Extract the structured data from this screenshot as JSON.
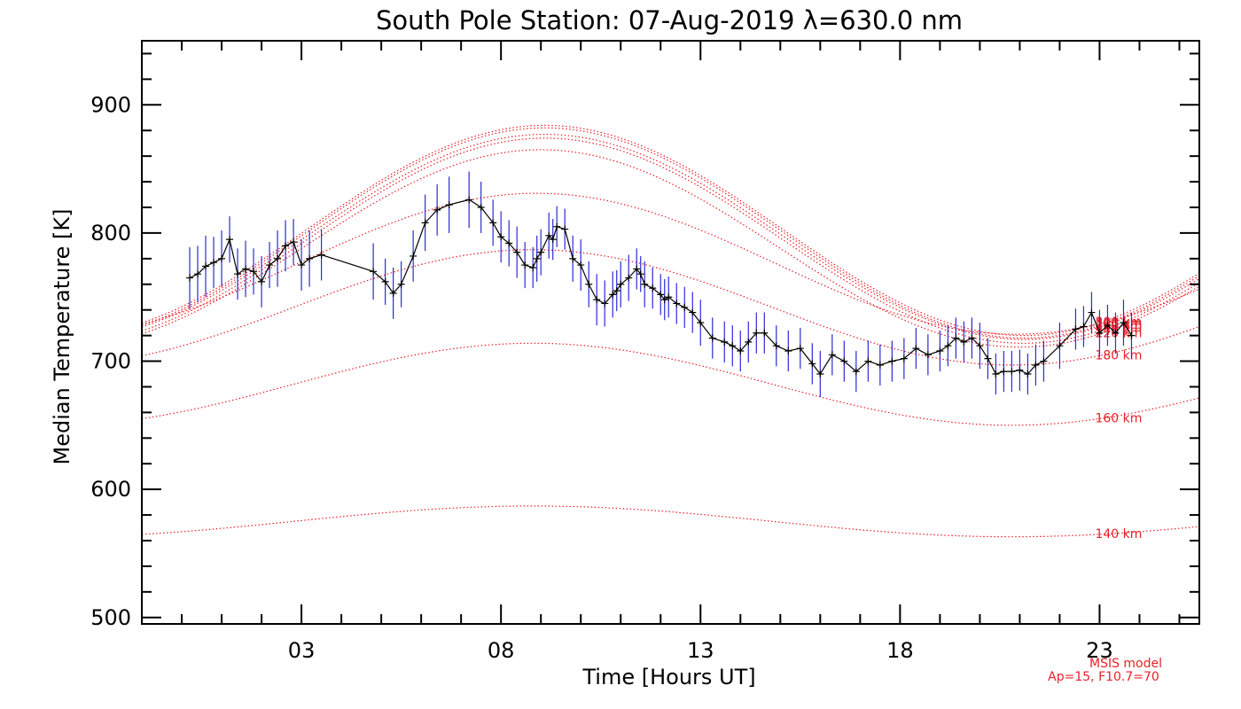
{
  "chart_data": {
    "type": "line",
    "title": "South Pole Station: 07-Aug-2019 λ=630.0 nm",
    "xlabel": "Time [Hours UT]",
    "ylabel": "Median Temperature [K]",
    "xlim": [
      -1,
      25.5
    ],
    "ylim": [
      495,
      950
    ],
    "x_ticks": [
      3,
      8,
      13,
      18,
      23
    ],
    "x_tick_labels": [
      "03",
      "08",
      "13",
      "18",
      "23"
    ],
    "y_ticks": [
      500,
      600,
      700,
      800,
      900
    ],
    "y_tick_labels": [
      "500",
      "600",
      "700",
      "800",
      "900"
    ],
    "observations": {
      "name": "Median temperature",
      "color_line": "#000000",
      "color_error": "#2b2bd6",
      "x": [
        0.2,
        0.4,
        0.6,
        0.8,
        1.0,
        1.2,
        1.4,
        1.6,
        1.8,
        2.0,
        2.2,
        2.4,
        2.6,
        2.8,
        3.0,
        3.2,
        3.5,
        4.8,
        5.1,
        5.3,
        5.5,
        5.8,
        6.1,
        6.4,
        6.7,
        7.2,
        7.5,
        7.8,
        8.0,
        8.2,
        8.4,
        8.6,
        8.8,
        8.9,
        9.0,
        9.2,
        9.3,
        9.4,
        9.6,
        9.8,
        10.0,
        10.2,
        10.4,
        10.6,
        10.8,
        10.9,
        11.0,
        11.2,
        11.4,
        11.5,
        11.6,
        11.8,
        12.0,
        12.1,
        12.2,
        12.4,
        12.6,
        12.8,
        13.0,
        13.3,
        13.6,
        13.8,
        14.0,
        14.2,
        14.4,
        14.6,
        14.9,
        15.2,
        15.5,
        15.8,
        16.0,
        16.3,
        16.6,
        16.9,
        17.2,
        17.5,
        17.8,
        18.1,
        18.4,
        18.7,
        19.0,
        19.2,
        19.4,
        19.6,
        19.8,
        20.0,
        20.2,
        20.4,
        20.6,
        20.8,
        21.0,
        21.2,
        21.4,
        21.6,
        22.0,
        22.4,
        22.6,
        22.8,
        23.0,
        23.2,
        23.4,
        23.6,
        23.8
      ],
      "y": [
        765,
        768,
        774,
        777,
        780,
        795,
        768,
        772,
        770,
        762,
        775,
        780,
        790,
        793,
        775,
        780,
        783,
        770,
        762,
        753,
        760,
        782,
        808,
        818,
        822,
        826,
        820,
        808,
        797,
        792,
        785,
        775,
        773,
        780,
        785,
        798,
        795,
        805,
        803,
        780,
        775,
        760,
        748,
        745,
        752,
        755,
        760,
        765,
        772,
        768,
        760,
        757,
        752,
        748,
        750,
        745,
        742,
        738,
        730,
        718,
        715,
        712,
        708,
        715,
        722,
        722,
        712,
        708,
        710,
        698,
        690,
        705,
        700,
        692,
        700,
        697,
        700,
        702,
        710,
        705,
        708,
        712,
        718,
        715,
        718,
        712,
        702,
        690,
        692,
        692,
        693,
        690,
        697,
        700,
        712,
        725,
        727,
        738,
        722,
        728,
        722,
        730,
        720
      ],
      "err": [
        24,
        22,
        24,
        20,
        22,
        18,
        20,
        22,
        18,
        20,
        18,
        22,
        20,
        18,
        20,
        22,
        20,
        22,
        18,
        20,
        18,
        20,
        22,
        20,
        22,
        22,
        20,
        18,
        20,
        18,
        20,
        18,
        16,
        18,
        18,
        18,
        16,
        16,
        16,
        18,
        20,
        18,
        20,
        18,
        18,
        16,
        18,
        18,
        16,
        14,
        18,
        16,
        16,
        16,
        16,
        16,
        16,
        16,
        18,
        16,
        16,
        16,
        16,
        16,
        16,
        16,
        16,
        16,
        16,
        16,
        18,
        16,
        16,
        16,
        16,
        16,
        16,
        16,
        16,
        16,
        16,
        16,
        16,
        16,
        16,
        18,
        16,
        16,
        16,
        16,
        16,
        16,
        16,
        16,
        18,
        16,
        16,
        16,
        18,
        16,
        16,
        18,
        18
      ]
    },
    "model_curves": [
      {
        "label": "140 km",
        "mean": 575,
        "amplitude": 12,
        "min_hour": 20.8
      },
      {
        "label": "160 km",
        "mean": 682,
        "amplitude": 32,
        "min_hour": 20.8
      },
      {
        "label": "180 km",
        "mean": 742,
        "amplitude": 45,
        "min_hour": 20.8
      },
      {
        "label": "200 km",
        "mean": 776,
        "amplitude": 55,
        "min_hour": 20.9
      },
      {
        "label": "220 km",
        "mean": 788,
        "amplitude": 77,
        "min_hour": 21.0
      },
      {
        "label": "240 km",
        "mean": 794,
        "amplitude": 80,
        "min_hour": 21.1
      },
      {
        "label": "260 km",
        "mean": 797,
        "amplitude": 80,
        "min_hour": 21.1
      },
      {
        "label": "280 km",
        "mean": 800,
        "amplitude": 82,
        "min_hour": 21.1
      },
      {
        "label": "300 km",
        "mean": 802,
        "amplitude": 82,
        "min_hour": 21.1
      }
    ],
    "model_color": "#e8202a",
    "model_note_line1": "MSIS model",
    "model_note_line2": "Ap=15, F10.7=70"
  }
}
